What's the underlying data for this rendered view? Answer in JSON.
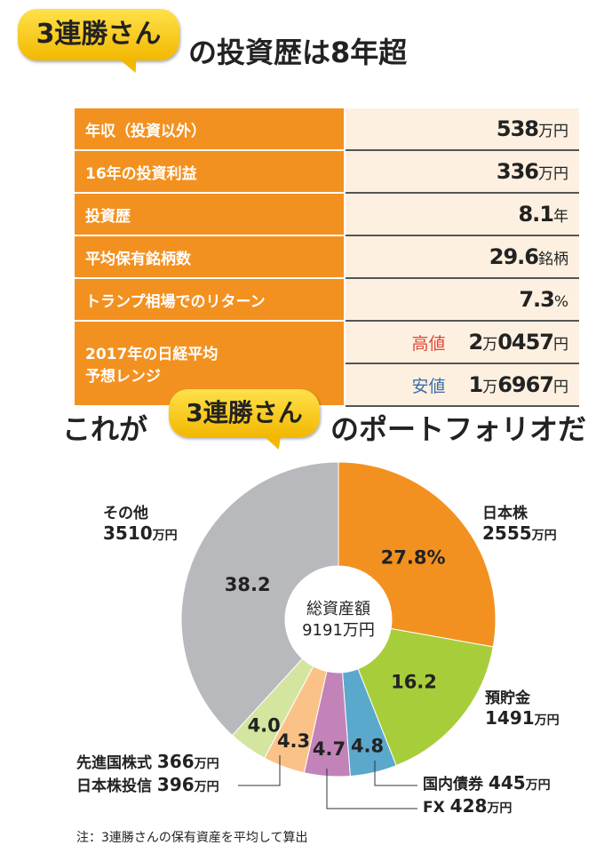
{
  "header": {
    "bubble": "3連勝さん",
    "title": "の投資歴は8年超"
  },
  "table": [
    {
      "label": "年収（投資以外）",
      "value": "538",
      "unit": "万円"
    },
    {
      "label": "16年の投資利益",
      "value": "336",
      "unit": "万円"
    },
    {
      "label": "投資歴",
      "value": "8.1",
      "unit": "年"
    },
    {
      "label": "平均保有銘柄数",
      "value": "29.6",
      "unit": "銘柄"
    },
    {
      "label": "トランプ相場でのリターン",
      "value": "7.3",
      "unit": "%"
    }
  ],
  "range": {
    "label1": "2017年の日経平均",
    "label2": "予想レンジ",
    "high_label": "高値",
    "high_a": "2",
    "high_b": "0457",
    "low_label": "安値",
    "low_a": "1",
    "low_b": "6967",
    "man": "万",
    "yen": "円"
  },
  "portfolio_heading": {
    "before": "これが",
    "bubble": "3連勝さん",
    "after": "のポートフォリオだ"
  },
  "chart_data": {
    "type": "pie",
    "donut": true,
    "center_label": [
      "総資産額",
      "9191万円"
    ],
    "slices": [
      {
        "name": "日本株",
        "amount": "2555",
        "value": 27.8,
        "label": "27.8",
        "pct": "%",
        "color": "#f39120"
      },
      {
        "name": "預貯金",
        "amount": "1491",
        "value": 16.2,
        "label": "16.2",
        "color": "#a8cd3a"
      },
      {
        "name": "国内債券",
        "amount": "445",
        "value": 4.8,
        "label": "4.8",
        "color": "#5aa8cc"
      },
      {
        "name": "FX",
        "amount": "428",
        "value": 4.7,
        "label": "4.7",
        "color": "#c283b9"
      },
      {
        "name": "日本株投信",
        "amount": "396",
        "value": 4.3,
        "label": "4.3",
        "color": "#fbc287"
      },
      {
        "name": "先進国株式",
        "amount": "366",
        "value": 4.0,
        "label": "4.0",
        "color": "#d3e59f"
      },
      {
        "name": "その他",
        "amount": "3510",
        "value": 38.2,
        "label": "38.2",
        "color": "#b8b9bd"
      }
    ],
    "unit": "万円"
  },
  "note": "注：3連勝さんの保有資産を平均して算出"
}
